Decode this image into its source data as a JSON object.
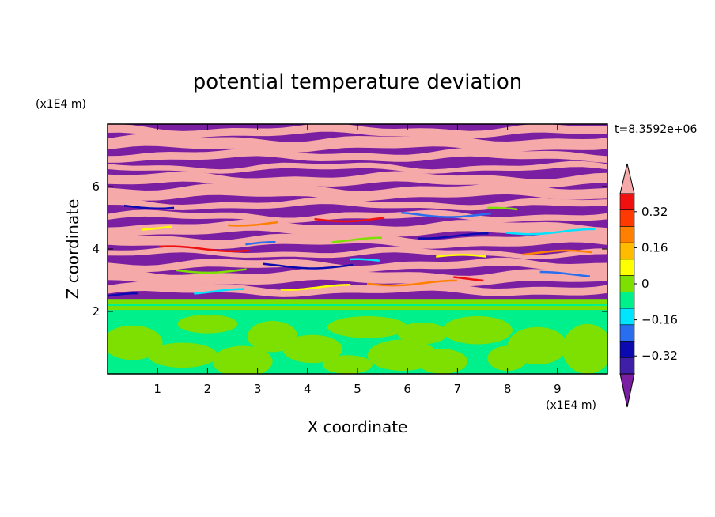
{
  "chart_data": {
    "type": "heatmap",
    "title": "potential temperature deviation",
    "xlabel": "X coordinate",
    "ylabel": "Z coordinate",
    "x_unit": "(x1E4 m)",
    "y_unit": "(x1E4 m)",
    "time_label": "t=8.3592e+06",
    "xlim": [
      0,
      10
    ],
    "ylim": [
      0,
      8
    ],
    "x_ticks": [
      "1",
      "2",
      "3",
      "4",
      "5",
      "6",
      "7",
      "8",
      "9"
    ],
    "y_ticks": [
      "2",
      "4",
      "6"
    ],
    "colorbar": {
      "levels": [
        -0.48,
        -0.4,
        -0.32,
        -0.24,
        -0.16,
        -0.08,
        0,
        0.08,
        0.16,
        0.24,
        0.32,
        0.4,
        0.48
      ],
      "colors": [
        "#7b1fa2",
        "#3f1fa8",
        "#0a0ab0",
        "#2a6ef0",
        "#00e5ff",
        "#00f08c",
        "#7ee000",
        "#ffff00",
        "#ffbb00",
        "#ff8000",
        "#ff3a00",
        "#f01010",
        "#f5a9a9"
      ],
      "extend": "both",
      "tick_labels": [
        "0.32",
        "0.16",
        "0",
        "−0.16",
        "−0.32"
      ],
      "tick_values": [
        0.32,
        0.16,
        0,
        -0.16,
        -0.32
      ]
    },
    "layers": [
      {
        "z_range": [
          0,
          2.1
        ],
        "description_colors": [
          "#00f08c",
          "#7ee000"
        ]
      },
      {
        "z_range": [
          2.1,
          2.4
        ],
        "description_colors": [
          "#00f08c",
          "#7ee000"
        ]
      },
      {
        "z_range": [
          2.4,
          8
        ],
        "description_colors": [
          "#7b1fa2",
          "#f5a9a9"
        ]
      }
    ]
  },
  "colors": {
    "purple": "#7b1fa2",
    "pink": "#f5a9a9",
    "green": "#00f08c",
    "lime": "#7ee000"
  }
}
